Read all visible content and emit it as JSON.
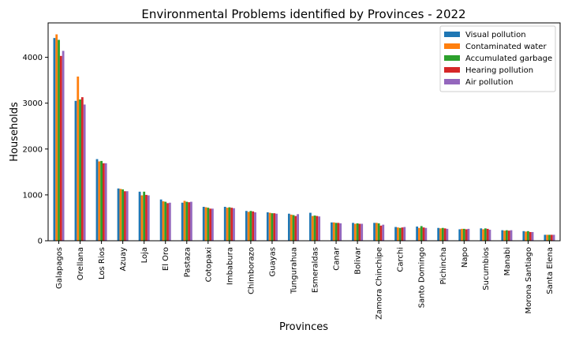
{
  "chart_data": {
    "type": "bar",
    "title": "Environmental Problems identified by Provinces - 2022",
    "xlabel": "Provinces",
    "ylabel": "Households",
    "ylim": [
      0,
      4750
    ],
    "yticks": [
      0,
      1000,
      2000,
      3000,
      4000
    ],
    "grid": false,
    "legend_position": "top-right",
    "categories": [
      "Galapagos",
      "Orellana",
      "Los Rios",
      "Azuay",
      "Loja",
      "El Oro",
      "Pastaza",
      "Cotopaxi",
      "Imbabura",
      "Chimborazo",
      "Guayas",
      "Tungurahua",
      "Esmeraldas",
      "Canar",
      "Bolivar",
      "Zamora Chinchipe",
      "Carchi",
      "Santo Domingo",
      "Pichincha",
      "Napo",
      "Sucumbios",
      "Manabi",
      "Morona Santiago",
      "Santa Elena"
    ],
    "series": [
      {
        "name": "Visual pollution",
        "color": "#1f77b4",
        "values": [
          4420,
          3050,
          1780,
          1140,
          1070,
          900,
          830,
          740,
          740,
          650,
          620,
          590,
          610,
          400,
          390,
          390,
          300,
          310,
          280,
          250,
          270,
          230,
          210,
          130
        ]
      },
      {
        "name": "Contaminated water",
        "color": "#ff7f0e",
        "values": [
          4500,
          3580,
          1730,
          1130,
          990,
          860,
          870,
          730,
          720,
          630,
          610,
          570,
          540,
          400,
          370,
          390,
          290,
          280,
          270,
          260,
          250,
          220,
          200,
          130
        ]
      },
      {
        "name": "Accumulated garbage",
        "color": "#2ca02c",
        "values": [
          4380,
          3080,
          1740,
          1120,
          1070,
          850,
          850,
          720,
          730,
          650,
          600,
          560,
          550,
          390,
          380,
          380,
          280,
          320,
          280,
          260,
          270,
          230,
          210,
          130
        ]
      },
      {
        "name": "Hearing pollution",
        "color": "#d62728",
        "values": [
          4030,
          3130,
          1690,
          1080,
          1000,
          820,
          840,
          700,
          720,
          640,
          600,
          540,
          540,
          390,
          370,
          330,
          290,
          290,
          270,
          250,
          260,
          220,
          190,
          130
        ]
      },
      {
        "name": "Air pollution",
        "color": "#9467bd",
        "values": [
          4140,
          2970,
          1690,
          1080,
          990,
          830,
          850,
          700,
          710,
          620,
          590,
          580,
          530,
          380,
          370,
          350,
          300,
          280,
          260,
          260,
          240,
          230,
          190,
          130
        ]
      }
    ]
  }
}
